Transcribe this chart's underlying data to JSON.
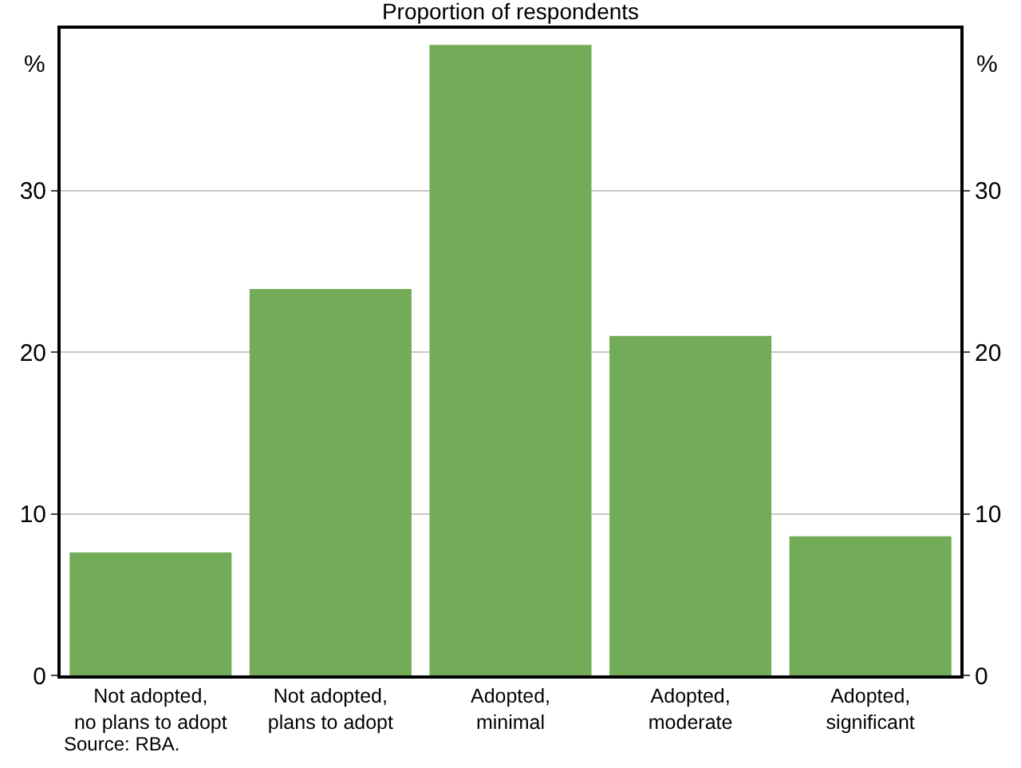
{
  "chart_data": {
    "type": "bar",
    "title": "Proportion of respondents",
    "categories": [
      "Not adopted,\nno plans to adopt",
      "Not adopted,\nplans to adopt",
      "Adopted,\nminimal",
      "Adopted,\nmoderate",
      "Adopted,\nsignificant"
    ],
    "values": [
      7.6,
      23.9,
      39.0,
      21.0,
      8.6
    ],
    "color": "#72ac58",
    "ylabel": "%",
    "y2label": "%",
    "ylim": [
      0,
      40
    ],
    "yticks": [
      0,
      10,
      20,
      30
    ],
    "y2lim": [
      0,
      40
    ],
    "y2ticks": [
      0,
      10,
      20,
      30
    ],
    "grid": "y",
    "annotations": [
      "Source: RBA."
    ]
  }
}
